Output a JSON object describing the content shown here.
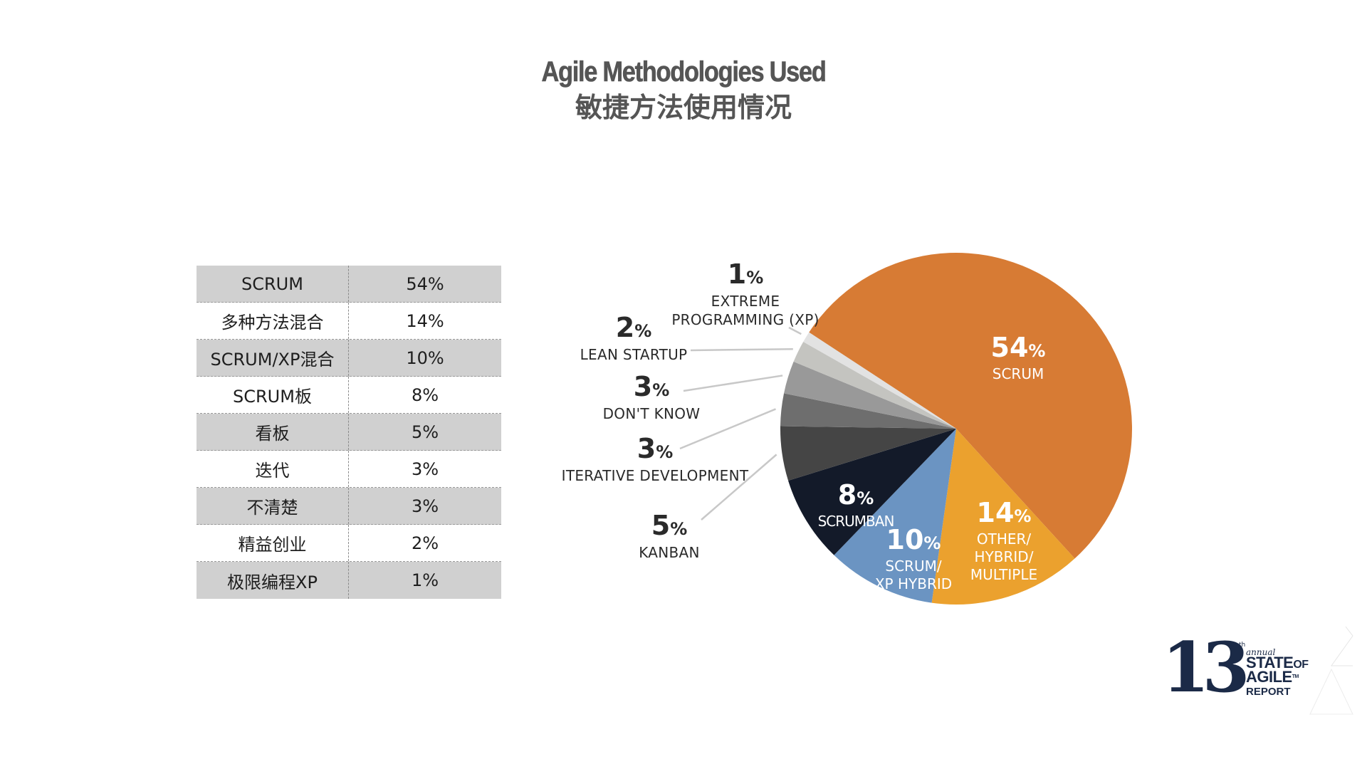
{
  "title": {
    "en": "Agile Methodologies Used",
    "zh": "敏捷方法使用情况"
  },
  "table": {
    "rows": [
      {
        "name": "SCRUM",
        "value": "54%",
        "shaded": true
      },
      {
        "name": "多种方法混合",
        "value": "14%",
        "shaded": false
      },
      {
        "name": "SCRUM/XP混合",
        "value": "10%",
        "shaded": true
      },
      {
        "name": "SCRUM板",
        "value": "8%",
        "shaded": false
      },
      {
        "name": "看板",
        "value": "5%",
        "shaded": true
      },
      {
        "name": "迭代",
        "value": "3%",
        "shaded": false
      },
      {
        "name": "不清楚",
        "value": "3%",
        "shaded": true
      },
      {
        "name": "精益创业",
        "value": "2%",
        "shaded": false
      },
      {
        "name": "极限编程XP",
        "value": "1%",
        "shaded": true
      }
    ]
  },
  "pie_labels": {
    "scrum": {
      "num": "54",
      "pct": "%",
      "label": "SCRUM"
    },
    "other": {
      "num": "14",
      "pct": "%",
      "l1": "OTHER/",
      "l2": "HYBRID/",
      "l3": "MULTIPLE"
    },
    "scrumxp": {
      "num": "10",
      "pct": "%",
      "l1": "SCRUM/",
      "l2": "XP HYBRID"
    },
    "scrumban": {
      "num": "8",
      "pct": "%",
      "label": "SCRUMBAN"
    },
    "kanban": {
      "num": "5",
      "pct": "%",
      "label": "KANBAN"
    },
    "iterative": {
      "num": "3",
      "pct": "%",
      "label": "ITERATIVE DEVELOPMENT"
    },
    "dontknow": {
      "num": "3",
      "pct": "%",
      "label": "DON'T KNOW"
    },
    "lean": {
      "num": "2",
      "pct": "%",
      "label": "LEAN STARTUP"
    },
    "xp": {
      "num": "1",
      "pct": "%",
      "l1": "EXTREME",
      "l2": "PROGRAMMING (XP)"
    }
  },
  "logo": {
    "number": "13",
    "suffix": "th",
    "annual": "annual",
    "state": "STATE",
    "of": "OF",
    "agile": "AGILE",
    "tm": "TM",
    "report": "REPORT"
  },
  "chart_data": {
    "type": "pie",
    "title": "Agile Methodologies Used",
    "subtitle": "敏捷方法使用情况",
    "start_angle_deg": -56.8,
    "direction": "clockwise",
    "categories": [
      "Scrum",
      "Other/Hybrid/Multiple",
      "Scrum/XP Hybrid",
      "Scrumban",
      "Kanban",
      "Iterative Development",
      "Don't Know",
      "Lean Startup",
      "Extreme Programming (XP)"
    ],
    "values": [
      54,
      14,
      10,
      8,
      5,
      3,
      3,
      2,
      1
    ],
    "colors": [
      "#d77b34",
      "#eba12e",
      "#6b94c2",
      "#131a29",
      "#454545",
      "#6e6e6e",
      "#999999",
      "#c4c4c0",
      "#e2e2e2"
    ],
    "unit": "%",
    "legend": "none (direct labels)",
    "companion_table_zh": [
      [
        "SCRUM",
        54
      ],
      [
        "多种方法混合",
        14
      ],
      [
        "SCRUM/XP混合",
        10
      ],
      [
        "SCRUM板",
        8
      ],
      [
        "看板",
        5
      ],
      [
        "迭代",
        3
      ],
      [
        "不清楚",
        3
      ],
      [
        "精益创业",
        2
      ],
      [
        "极限编程XP",
        1
      ]
    ]
  }
}
